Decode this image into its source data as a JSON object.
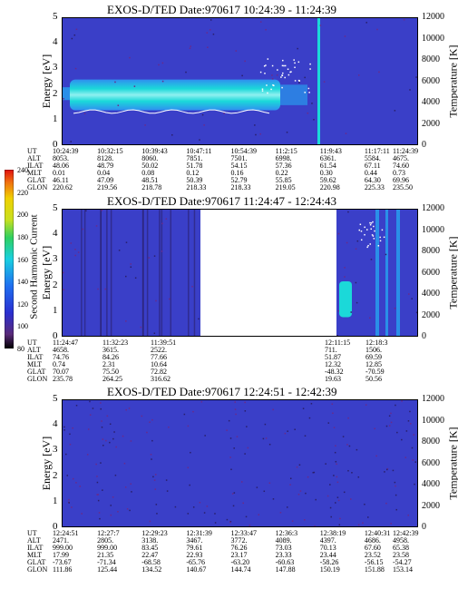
{
  "chart_data": [
    {
      "type": "heatmap",
      "title": "EXOS-D/TED  Date:970617  10:24:39 - 11:24:39",
      "ylabel": "Energy [eV]",
      "y2label": "Temperature [K]",
      "ylim": [
        0,
        5
      ],
      "y2lim": [
        0,
        12000
      ],
      "yticks": [
        "0",
        "1",
        "2",
        "3",
        "4",
        "5"
      ],
      "y2ticks": [
        "0",
        "2000",
        "4000",
        "6000",
        "8000",
        "10000",
        "12000"
      ],
      "ephemeris": {
        "labels": [
          "UT",
          "ALT",
          "ILAT",
          "MLT",
          "GLAT",
          "GLON"
        ],
        "columns": [
          [
            "10:24:39",
            "8053.",
            "48.06",
            "0.01",
            "46.11",
            "220.62"
          ],
          [
            "10:32:15",
            "8128.",
            "48.79",
            "0.04",
            "47.09",
            "219.56"
          ],
          [
            "10:39:43",
            "8060.",
            "50.02",
            "0.08",
            "48.51",
            "218.78"
          ],
          [
            "10:47:11",
            "7851.",
            "51.78",
            "0.12",
            "50.39",
            "218.33"
          ],
          [
            "10:54:39",
            "7501.",
            "54.15",
            "0.16",
            "52.79",
            "218.33"
          ],
          [
            "11:2:15",
            "6998.",
            "57.36",
            "0.22",
            "55.85",
            "219.05"
          ],
          [
            "11:9:43",
            "6361.",
            "61.54",
            "0.30",
            "59.62",
            "220.98"
          ],
          [
            "11:17:11",
            "5584.",
            "67.11",
            "0.44",
            "64.30",
            "225.33"
          ],
          [
            "11:24:39",
            "4675.",
            "74.60",
            "0.73",
            "69.96",
            "235.50"
          ]
        ]
      }
    },
    {
      "type": "heatmap",
      "title": "EXOS-D/TED  Date:970617  11:24:47 - 12:24:43",
      "ylabel": "Energy [eV]",
      "y2label": "Temperature [K]",
      "ylim": [
        0,
        5
      ],
      "y2lim": [
        0,
        12000
      ],
      "yticks": [
        "0",
        "1",
        "2",
        "3",
        "4",
        "5"
      ],
      "y2ticks": [
        "0",
        "2000",
        "4000",
        "6000",
        "8000",
        "10000",
        "12000"
      ],
      "data_gap": [
        "11:39:51",
        "12:11:15"
      ],
      "ephemeris": {
        "labels": [
          "UT",
          "ALT",
          "ILAT",
          "MLT",
          "GLAT",
          "GLON"
        ],
        "columns": [
          [
            "11:24:47",
            "4658.",
            "74.76",
            "0.74",
            "70.07",
            "235.78"
          ],
          [
            "11:32:23",
            "3615.",
            "84.26",
            "2.31",
            "75.50",
            "264.25"
          ],
          [
            "11:39:51",
            "2522.",
            "77.66",
            "10.64",
            "72.82",
            "316.62"
          ],
          [
            "12:11:15",
            "711.",
            "51.87",
            "12.32",
            "-48.32",
            "19.63"
          ],
          [
            "12:18:3",
            "1506.",
            "69.59",
            "12.85",
            "-70.59",
            "50.56"
          ]
        ]
      }
    },
    {
      "type": "heatmap",
      "title": "EXOS-D/TED  Date:970617  12:24:51 - 12:42:39",
      "ylabel": "Energy [eV]",
      "y2label": "Temperature [K]",
      "ylim": [
        0,
        5
      ],
      "y2lim": [
        0,
        12000
      ],
      "yticks": [
        "0",
        "1",
        "2",
        "3",
        "4",
        "5"
      ],
      "y2ticks": [
        "0",
        "2000",
        "4000",
        "6000",
        "8000",
        "10000",
        "12000"
      ],
      "ephemeris": {
        "labels": [
          "UT",
          "ALT",
          "ILAT",
          "MLT",
          "GLAT",
          "GLON"
        ],
        "columns": [
          [
            "12:24:51",
            "2471.",
            "999.00",
            "17.99",
            "-73.67",
            "111.86"
          ],
          [
            "12:27:7",
            "2805.",
            "999.00",
            "21.35",
            "-71.34",
            "125.44"
          ],
          [
            "12:29:23",
            "3138.",
            "83.45",
            "22.47",
            "-68.58",
            "134.52"
          ],
          [
            "12:31:39",
            "3467.",
            "79.61",
            "22.93",
            "-65.76",
            "140.67"
          ],
          [
            "12:33:47",
            "3772.",
            "76.26",
            "23.17",
            "-63.20",
            "144.74"
          ],
          [
            "12:36:3",
            "4089.",
            "73.03",
            "23.33",
            "-60.63",
            "147.88"
          ],
          [
            "12:38:19",
            "4397.",
            "70.13",
            "23.44",
            "-58.26",
            "150.19"
          ],
          [
            "12:40:31",
            "4686.",
            "67.60",
            "23.52",
            "-56.15",
            "151.88"
          ],
          [
            "12:42:39",
            "4958.",
            "65.38",
            "23.58",
            "-54.27",
            "153.14"
          ]
        ]
      }
    }
  ],
  "colorbar": {
    "label": "Second Harmonic Current",
    "range": [
      80,
      240
    ],
    "ticks": [
      "80",
      "100",
      "120",
      "140",
      "160",
      "180",
      "200",
      "220",
      "240"
    ]
  },
  "colors": {
    "background": "#3a3fc8",
    "cyan": "#1bd9d9",
    "light": "#8ff0f0",
    "dark": "#2a1f6b"
  }
}
